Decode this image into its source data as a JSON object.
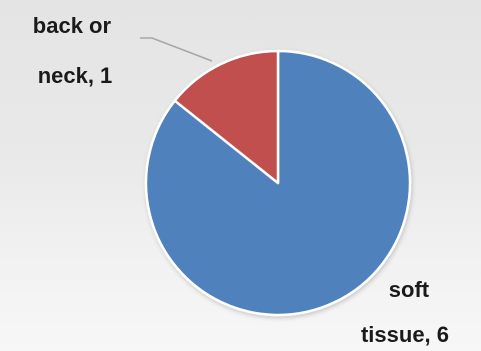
{
  "chart_data": {
    "type": "pie",
    "title": "",
    "slices": [
      {
        "category": "soft tissue",
        "value": 6,
        "label_line1": "soft",
        "label_line2": "tissue, 6",
        "color": "#4f81bd"
      },
      {
        "category": "back or neck",
        "value": 1,
        "label_line1": "back or",
        "label_line2": "neck, 1",
        "color": "#c0504d"
      }
    ],
    "legend": "none",
    "start_angle_deg": 0,
    "direction": "clockwise"
  }
}
